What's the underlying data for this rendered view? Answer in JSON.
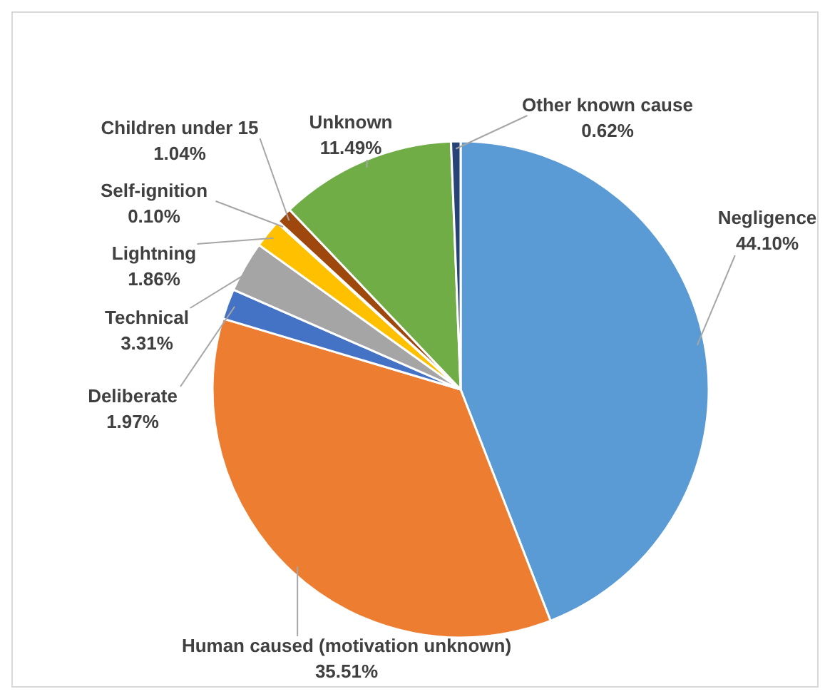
{
  "chart_data": {
    "type": "pie",
    "categories": [
      "Negligence",
      "Human caused (motivation unknown)",
      "Deliberate",
      "Technical",
      "Lightning",
      "Self-ignition",
      "Children under 15",
      "Unknown",
      "Other known cause"
    ],
    "values": [
      44.1,
      35.51,
      1.97,
      3.31,
      1.86,
      0.1,
      1.04,
      11.49,
      0.62
    ],
    "colors": [
      "#5b9bd5",
      "#ed7d31",
      "#4472c4",
      "#a5a5a5",
      "#ffc000",
      "#5b9bd5",
      "#9e480e",
      "#70ad47",
      "#264478"
    ],
    "value_labels": [
      "44.10%",
      "35.51%",
      "1.97%",
      "3.31%",
      "1.86%",
      "0.10%",
      "1.04%",
      "11.49%",
      "0.62%"
    ]
  }
}
